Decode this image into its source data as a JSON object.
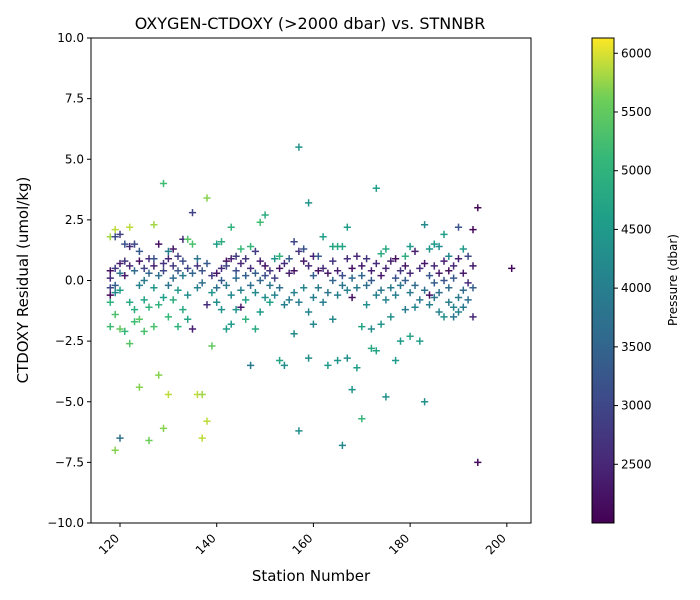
{
  "chart_data": {
    "type": "scatter",
    "title": "OXYGEN-CTDOXY (>2000 dbar) vs. STNNBR",
    "xlabel": "Station Number",
    "ylabel": "CTDOXY Residual (umol/kg)",
    "xlim": [
      114,
      205
    ],
    "ylim": [
      -10,
      10
    ],
    "xticks": [
      120,
      140,
      160,
      180,
      200
    ],
    "yticks": [
      -10.0,
      -7.5,
      -5.0,
      -2.5,
      0.0,
      2.5,
      5.0,
      7.5,
      10.0
    ],
    "xtick_labels": [
      "120",
      "140",
      "160",
      "180",
      "200"
    ],
    "ytick_labels": [
      "−10.0",
      "−7.5",
      "−5.0",
      "−2.5",
      "0.0",
      "2.5",
      "5.0",
      "7.5",
      "10.0"
    ],
    "marker": "+",
    "grid": false,
    "colorbar": {
      "label": "Pressure (dbar)",
      "range": [
        2000,
        6130
      ],
      "ticks": [
        2500,
        3000,
        3500,
        4000,
        4500,
        5000,
        5500,
        6000
      ],
      "tick_labels": [
        "2500",
        "3000",
        "3500",
        "4000",
        "4500",
        "5000",
        "5500",
        "6000"
      ],
      "colormap": "viridis"
    },
    "points": [
      [
        118,
        0.4,
        2200
      ],
      [
        118,
        0.1,
        2600
      ],
      [
        118,
        -0.3,
        3000
      ],
      [
        118,
        -0.6,
        2100
      ],
      [
        118,
        1.8,
        5800
      ],
      [
        118,
        -1.9,
        5200
      ],
      [
        118,
        -0.9,
        5000
      ],
      [
        119,
        0.5,
        2800
      ],
      [
        119,
        -0.2,
        3400
      ],
      [
        119,
        2.1,
        5900
      ],
      [
        119,
        -1.4,
        5300
      ],
      [
        119,
        -7.0,
        5700
      ],
      [
        119,
        1.8,
        3100
      ],
      [
        119,
        -0.5,
        4200
      ],
      [
        120,
        0.7,
        2400
      ],
      [
        120,
        0.3,
        3800
      ],
      [
        120,
        -0.4,
        4600
      ],
      [
        120,
        -2.0,
        5500
      ],
      [
        120,
        -6.5,
        3700
      ],
      [
        120,
        1.9,
        2900
      ],
      [
        121,
        1.5,
        3200
      ],
      [
        121,
        0.2,
        2300
      ],
      [
        121,
        -2.1,
        5100
      ],
      [
        121,
        0.8,
        2700
      ],
      [
        122,
        2.2,
        5900
      ],
      [
        122,
        0.6,
        2500
      ],
      [
        122,
        -2.6,
        5400
      ],
      [
        122,
        -0.9,
        4800
      ],
      [
        122,
        1.4,
        2600
      ],
      [
        123,
        0.4,
        3600
      ],
      [
        123,
        -1.2,
        4900
      ],
      [
        123,
        1.5,
        3000
      ],
      [
        123,
        -1.7,
        5200
      ],
      [
        124,
        0.8,
        2200
      ],
      [
        124,
        -0.2,
        4100
      ],
      [
        124,
        -4.4,
        5700
      ],
      [
        124,
        1.2,
        3300
      ],
      [
        124,
        -1.6,
        5400
      ],
      [
        125,
        0.5,
        2900
      ],
      [
        125,
        -0.8,
        4700
      ],
      [
        125,
        -2.1,
        5300
      ],
      [
        125,
        0.0,
        3900
      ],
      [
        126,
        0.9,
        2600
      ],
      [
        126,
        -6.6,
        5600
      ],
      [
        126,
        -1.1,
        5000
      ],
      [
        126,
        0.3,
        3500
      ],
      [
        127,
        2.3,
        5800
      ],
      [
        127,
        0.6,
        2400
      ],
      [
        127,
        -1.9,
        5300
      ],
      [
        127,
        -0.3,
        4400
      ],
      [
        127,
        0.9,
        3200
      ],
      [
        128,
        1.5,
        2200
      ],
      [
        128,
        -3.9,
        5700
      ],
      [
        128,
        0.2,
        3700
      ],
      [
        128,
        -1.0,
        5000
      ],
      [
        129,
        4.0,
        5200
      ],
      [
        129,
        -6.1,
        5700
      ],
      [
        129,
        0.7,
        2700
      ],
      [
        129,
        -0.7,
        4600
      ],
      [
        129,
        0.4,
        3000
      ],
      [
        130,
        -4.7,
        5900
      ],
      [
        130,
        0.9,
        2500
      ],
      [
        130,
        -0.2,
        3800
      ],
      [
        130,
        1.2,
        4000
      ],
      [
        130,
        -1.5,
        5100
      ],
      [
        131,
        1.3,
        2300
      ],
      [
        131,
        0.1,
        3600
      ],
      [
        131,
        -0.8,
        4900
      ],
      [
        131,
        0.6,
        2800
      ],
      [
        132,
        1.0,
        2900
      ],
      [
        132,
        -1.9,
        5000
      ],
      [
        132,
        0.4,
        3300
      ],
      [
        132,
        -0.4,
        4500
      ],
      [
        133,
        1.7,
        2600
      ],
      [
        133,
        -1.2,
        4800
      ],
      [
        133,
        0.2,
        3900
      ],
      [
        133,
        0.8,
        3100
      ],
      [
        134,
        1.7,
        5400
      ],
      [
        134,
        -1.6,
        4700
      ],
      [
        134,
        0.5,
        3000
      ],
      [
        134,
        -0.6,
        4300
      ],
      [
        135,
        2.8,
        2900
      ],
      [
        135,
        -2.0,
        2400
      ],
      [
        135,
        1.5,
        5300
      ],
      [
        135,
        0.3,
        3500
      ],
      [
        136,
        -4.7,
        5900
      ],
      [
        136,
        0.6,
        2700
      ],
      [
        136,
        -0.3,
        4100
      ],
      [
        136,
        0.9,
        3800
      ],
      [
        137,
        -4.7,
        5800
      ],
      [
        137,
        -6.5,
        5900
      ],
      [
        137,
        0.4,
        3200
      ],
      [
        137,
        -0.1,
        3700
      ],
      [
        138,
        3.4,
        5700
      ],
      [
        138,
        -5.8,
        5900
      ],
      [
        138,
        -1.0,
        2600
      ],
      [
        138,
        0.7,
        3300
      ],
      [
        139,
        -2.7,
        5500
      ],
      [
        139,
        0.2,
        2800
      ],
      [
        139,
        -0.5,
        4400
      ],
      [
        140,
        1.5,
        4600
      ],
      [
        140,
        0.3,
        2300
      ],
      [
        140,
        -0.9,
        4300
      ],
      [
        140,
        -0.3,
        3700
      ],
      [
        141,
        0.5,
        2600
      ],
      [
        141,
        -1.2,
        4400
      ],
      [
        141,
        0.0,
        3300
      ],
      [
        141,
        1.6,
        4900
      ],
      [
        142,
        0.8,
        2200
      ],
      [
        142,
        -0.2,
        3900
      ],
      [
        142,
        -2.0,
        4600
      ],
      [
        142,
        0.6,
        3000
      ],
      [
        143,
        2.2,
        5000
      ],
      [
        143,
        0.9,
        2400
      ],
      [
        143,
        -0.6,
        4200
      ],
      [
        143,
        -1.8,
        4500
      ],
      [
        144,
        0.4,
        3100
      ],
      [
        144,
        1.0,
        2800
      ],
      [
        144,
        -1.2,
        4400
      ],
      [
        144,
        0.1,
        3600
      ],
      [
        145,
        0.7,
        2500
      ],
      [
        145,
        -0.4,
        4000
      ],
      [
        145,
        1.3,
        5100
      ],
      [
        145,
        -1.1,
        2300
      ],
      [
        146,
        0.2,
        3400
      ],
      [
        146,
        -1.6,
        5000
      ],
      [
        146,
        0.9,
        2700
      ],
      [
        146,
        -0.8,
        4600
      ],
      [
        147,
        -3.5,
        3900
      ],
      [
        147,
        1.4,
        5100
      ],
      [
        147,
        0.5,
        2600
      ],
      [
        147,
        -0.2,
        3700
      ],
      [
        148,
        1.2,
        2800
      ],
      [
        148,
        -2.0,
        4800
      ],
      [
        148,
        0.3,
        3400
      ],
      [
        148,
        -0.5,
        4200
      ],
      [
        149,
        2.4,
        5200
      ],
      [
        149,
        0.8,
        2400
      ],
      [
        149,
        -1.3,
        4500
      ],
      [
        149,
        0.0,
        3500
      ],
      [
        150,
        2.7,
        4900
      ],
      [
        150,
        0.6,
        2200
      ],
      [
        150,
        -0.7,
        4300
      ],
      [
        150,
        0.2,
        3100
      ],
      [
        151,
        -0.9,
        4600
      ],
      [
        151,
        0.4,
        2700
      ],
      [
        151,
        -0.2,
        3800
      ],
      [
        152,
        0.9,
        4400
      ],
      [
        152,
        0.1,
        2900
      ],
      [
        152,
        -0.6,
        4100
      ],
      [
        153,
        -3.3,
        4700
      ],
      [
        153,
        0.5,
        2300
      ],
      [
        153,
        -0.3,
        3700
      ],
      [
        153,
        1.0,
        5000
      ],
      [
        154,
        -3.5,
        4300
      ],
      [
        154,
        0.7,
        2600
      ],
      [
        154,
        -1.0,
        4000
      ],
      [
        155,
        0.3,
        2400
      ],
      [
        155,
        -0.8,
        3900
      ],
      [
        155,
        0.9,
        3300
      ],
      [
        156,
        1.6,
        3000
      ],
      [
        156,
        -2.2,
        4200
      ],
      [
        156,
        0.4,
        2200
      ],
      [
        156,
        -0.5,
        4100
      ],
      [
        157,
        5.5,
        4400
      ],
      [
        157,
        -6.2,
        4300
      ],
      [
        157,
        1.2,
        2700
      ],
      [
        157,
        -0.9,
        4000
      ],
      [
        158,
        0.8,
        2300
      ],
      [
        158,
        -0.3,
        4100
      ],
      [
        158,
        1.3,
        3200
      ],
      [
        159,
        3.2,
        4400
      ],
      [
        159,
        -3.2,
        4300
      ],
      [
        159,
        0.6,
        2500
      ],
      [
        159,
        -1.3,
        4100
      ],
      [
        160,
        1.0,
        2400
      ],
      [
        160,
        -1.8,
        4200
      ],
      [
        160,
        0.2,
        3400
      ],
      [
        160,
        -0.7,
        4000
      ],
      [
        161,
        0.4,
        2200
      ],
      [
        161,
        -0.3,
        3900
      ],
      [
        161,
        1.0,
        3300
      ],
      [
        162,
        1.8,
        4600
      ],
      [
        162,
        0.5,
        2600
      ],
      [
        162,
        -0.9,
        4000
      ],
      [
        163,
        -3.5,
        4500
      ],
      [
        163,
        0.3,
        2300
      ],
      [
        163,
        -0.5,
        3800
      ],
      [
        164,
        1.4,
        4700
      ],
      [
        164,
        0.8,
        2700
      ],
      [
        164,
        -1.6,
        4200
      ],
      [
        164,
        0.0,
        3500
      ],
      [
        165,
        1.4,
        4800
      ],
      [
        165,
        -3.3,
        4400
      ],
      [
        165,
        0.4,
        2400
      ],
      [
        165,
        -0.6,
        4000
      ],
      [
        166,
        -6.8,
        4200
      ],
      [
        166,
        1.4,
        4700
      ],
      [
        166,
        0.2,
        3100
      ],
      [
        166,
        -0.2,
        3800
      ],
      [
        167,
        2.2,
        4600
      ],
      [
        167,
        -3.2,
        4300
      ],
      [
        167,
        0.9,
        2600
      ],
      [
        167,
        -0.4,
        4100
      ],
      [
        168,
        -4.5,
        4400
      ],
      [
        168,
        0.5,
        2200
      ],
      [
        168,
        -0.7,
        2200
      ],
      [
        168,
        0.1,
        3600
      ],
      [
        169,
        1.0,
        2500
      ],
      [
        169,
        -3.6,
        4600
      ],
      [
        169,
        -0.3,
        3900
      ],
      [
        170,
        0.6,
        2300
      ],
      [
        170,
        -5.7,
        5100
      ],
      [
        170,
        -1.9,
        4700
      ],
      [
        170,
        0.2,
        3500
      ],
      [
        171,
        0.9,
        2700
      ],
      [
        171,
        -1.0,
        4300
      ],
      [
        171,
        -0.2,
        3700
      ],
      [
        172,
        0.4,
        2400
      ],
      [
        172,
        -2.8,
        4800
      ],
      [
        172,
        -2.0,
        4200
      ],
      [
        172,
        0.0,
        3300
      ],
      [
        173,
        3.8,
        4600
      ],
      [
        173,
        -2.9,
        4700
      ],
      [
        173,
        0.7,
        2600
      ],
      [
        173,
        -0.6,
        4000
      ],
      [
        174,
        1.1,
        4900
      ],
      [
        174,
        0.2,
        2300
      ],
      [
        174,
        -1.8,
        4400
      ],
      [
        174,
        -0.4,
        3800
      ],
      [
        175,
        1.3,
        4800
      ],
      [
        175,
        -4.8,
        4300
      ],
      [
        175,
        0.5,
        2500
      ],
      [
        175,
        -0.8,
        4100
      ],
      [
        176,
        0.8,
        2400
      ],
      [
        176,
        -1.5,
        4300
      ],
      [
        176,
        -0.3,
        3900
      ],
      [
        177,
        0.9,
        2200
      ],
      [
        177,
        -3.3,
        4500
      ],
      [
        177,
        0.1,
        3200
      ],
      [
        177,
        -0.6,
        4000
      ],
      [
        178,
        -2.5,
        4500
      ],
      [
        178,
        0.4,
        2700
      ],
      [
        178,
        -0.2,
        3800
      ],
      [
        179,
        1.0,
        4900
      ],
      [
        179,
        0.6,
        2300
      ],
      [
        179,
        -1.2,
        4000
      ],
      [
        179,
        0.0,
        3400
      ],
      [
        180,
        -2.3,
        4700
      ],
      [
        180,
        0.3,
        2500
      ],
      [
        180,
        -0.5,
        3900
      ],
      [
        180,
        1.4,
        4500
      ],
      [
        181,
        1.2,
        2400
      ],
      [
        181,
        -1.1,
        4100
      ],
      [
        181,
        -0.2,
        3600
      ],
      [
        182,
        -2.5,
        4600
      ],
      [
        182,
        0.5,
        2600
      ],
      [
        182,
        -0.8,
        3900
      ],
      [
        183,
        2.3,
        4200
      ],
      [
        183,
        -5.0,
        4300
      ],
      [
        183,
        0.7,
        2300
      ],
      [
        183,
        -0.4,
        3700
      ],
      [
        184,
        1.3,
        4400
      ],
      [
        184,
        -0.6,
        2200
      ],
      [
        184,
        0.2,
        3300
      ],
      [
        184,
        -1.0,
        4000
      ],
      [
        185,
        1.5,
        4500
      ],
      [
        185,
        0.6,
        2500
      ],
      [
        185,
        -0.7,
        3800
      ],
      [
        185,
        -0.1,
        3400
      ],
      [
        186,
        1.4,
        4300
      ],
      [
        186,
        0.3,
        2300
      ],
      [
        186,
        -1.3,
        4100
      ],
      [
        186,
        -0.5,
        3700
      ],
      [
        187,
        1.9,
        4600
      ],
      [
        187,
        0.8,
        2400
      ],
      [
        187,
        -1.5,
        4300
      ],
      [
        187,
        0.0,
        3200
      ],
      [
        188,
        1.0,
        4200
      ],
      [
        188,
        0.4,
        2200
      ],
      [
        188,
        -0.9,
        3900
      ],
      [
        188,
        -0.3,
        3600
      ],
      [
        189,
        0.6,
        2500
      ],
      [
        189,
        -1.1,
        4100
      ],
      [
        189,
        0.1,
        3300
      ],
      [
        189,
        -1.5,
        3800
      ],
      [
        190,
        2.2,
        3200
      ],
      [
        190,
        0.9,
        2400
      ],
      [
        190,
        -0.7,
        3900
      ],
      [
        190,
        -1.3,
        4000
      ],
      [
        191,
        1.3,
        4500
      ],
      [
        191,
        0.3,
        2300
      ],
      [
        191,
        -0.4,
        3600
      ],
      [
        191,
        -1.1,
        3900
      ],
      [
        192,
        1.0,
        3000
      ],
      [
        192,
        -0.1,
        2600
      ],
      [
        192,
        -0.8,
        3700
      ],
      [
        193,
        2.1,
        2100
      ],
      [
        193,
        -1.5,
        2500
      ],
      [
        193,
        0.6,
        2300
      ],
      [
        193,
        -0.3,
        3400
      ],
      [
        194,
        3.0,
        2100
      ],
      [
        194,
        -7.5,
        2100
      ],
      [
        201,
        0.5,
        2100
      ]
    ]
  }
}
